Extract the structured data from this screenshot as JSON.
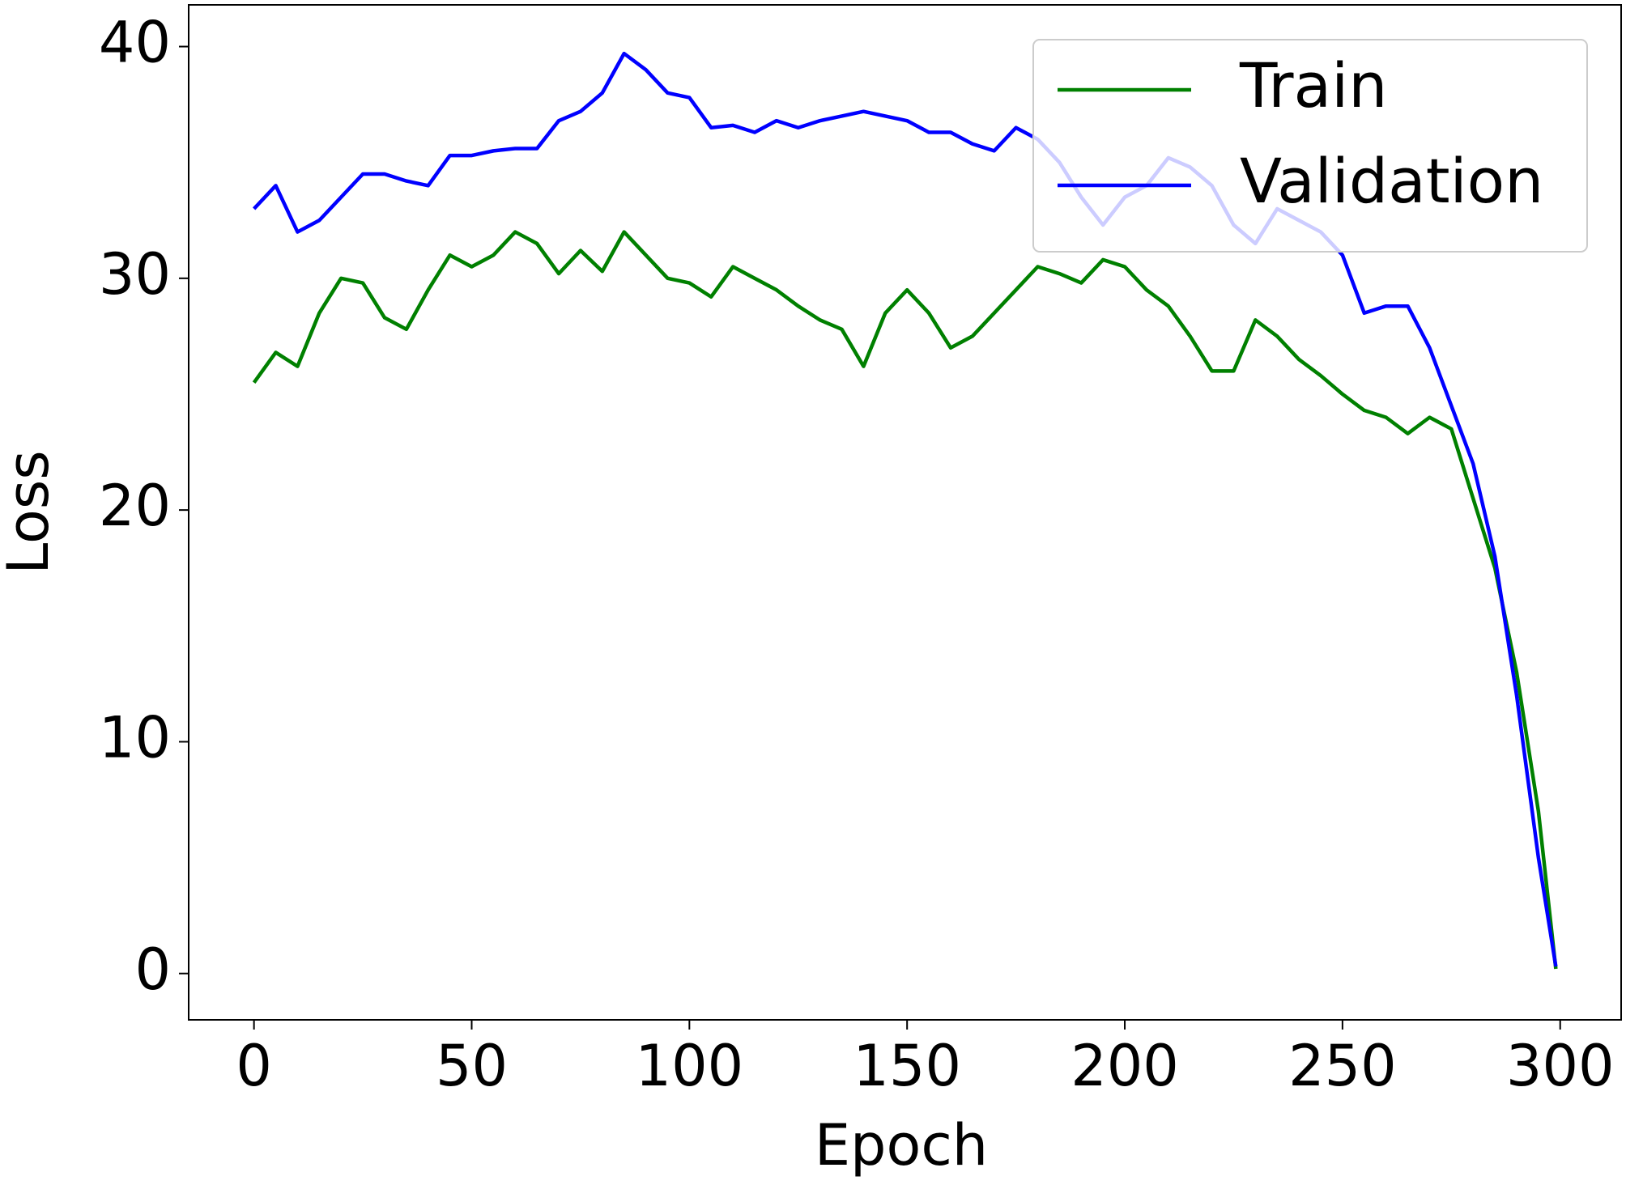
{
  "chart_data": {
    "type": "line",
    "x_label": "Epoch",
    "y_label": "Loss",
    "x": [
      0,
      5,
      10,
      15,
      20,
      25,
      30,
      35,
      40,
      45,
      50,
      55,
      60,
      65,
      70,
      75,
      80,
      85,
      90,
      95,
      100,
      105,
      110,
      115,
      120,
      125,
      130,
      135,
      140,
      145,
      150,
      155,
      160,
      165,
      170,
      175,
      180,
      185,
      190,
      195,
      200,
      205,
      210,
      215,
      220,
      225,
      230,
      235,
      240,
      245,
      250,
      255,
      260,
      265,
      270,
      275,
      280,
      285,
      290,
      295,
      299
    ],
    "series": [
      {
        "name": "Train",
        "color": "#008000",
        "values": [
          25.5,
          26.8,
          26.2,
          28.5,
          30,
          29.8,
          28.3,
          27.8,
          29.5,
          31,
          30.5,
          31,
          32,
          31.5,
          30.2,
          31.2,
          30.3,
          32,
          31,
          30,
          29.8,
          29.2,
          30.5,
          30,
          29.5,
          28.8,
          28.2,
          27.8,
          26.2,
          28.5,
          29.5,
          28.5,
          27,
          27.5,
          28.5,
          29.5,
          30.5,
          30.2,
          29.8,
          30.8,
          30.5,
          29.5,
          28.8,
          27.5,
          26,
          26,
          28.2,
          27.5,
          26.5,
          25.8,
          25,
          24.3,
          24,
          23.3,
          24,
          23.5,
          20.5,
          17.5,
          13,
          7,
          0.2
        ]
      },
      {
        "name": "Validation",
        "color": "#0000ff",
        "values": [
          33,
          34,
          32,
          32.5,
          33.5,
          34.5,
          34.5,
          34.2,
          34,
          35.3,
          35.3,
          35.5,
          35.6,
          35.6,
          36.8,
          37.2,
          38,
          39.7,
          39,
          38,
          37.8,
          36.5,
          36.6,
          36.3,
          36.8,
          36.5,
          36.8,
          37,
          37.2,
          37,
          36.8,
          36.3,
          36.3,
          35.8,
          35.5,
          36.5,
          36,
          35,
          33.5,
          32.3,
          33.5,
          34,
          35.2,
          34.8,
          34,
          32.3,
          31.5,
          33,
          32.5,
          32,
          31,
          28.5,
          28.8,
          28.8,
          27,
          24.5,
          22,
          18,
          12,
          5,
          0.3
        ]
      }
    ],
    "xlim": [
      -15,
      314
    ],
    "ylim": [
      -2,
      41.8
    ],
    "xticks": [
      0,
      50,
      100,
      150,
      200,
      250,
      300
    ],
    "yticks": [
      0,
      10,
      20,
      30,
      40
    ],
    "legend": "upper right",
    "grid": false
  }
}
